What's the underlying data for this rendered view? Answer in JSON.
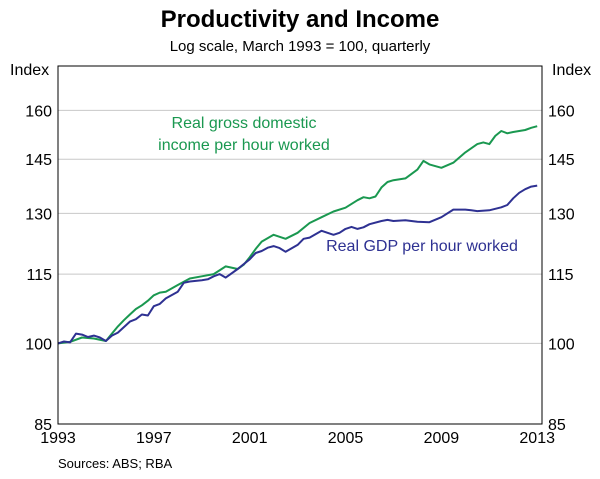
{
  "chart_data": {
    "type": "line",
    "title": "Productivity and Income",
    "subtitle": "Log scale, March 1993 = 100, quarterly",
    "ylabel_left": "Index",
    "ylabel_right": "Index",
    "y_scale": "log",
    "ylim": [
      85,
      175
    ],
    "yticks": [
      85,
      100,
      115,
      130,
      145,
      160
    ],
    "xlim": [
      1993,
      2013.2
    ],
    "xticks": [
      1993,
      1997,
      2001,
      2005,
      2009,
      2013
    ],
    "source": "Sources: ABS; RBA",
    "colors": {
      "green": "#1a9850",
      "blue": "#2e3192",
      "grid": "#c8c8c8"
    },
    "series": [
      {
        "name": "Real gross domestic income per hour worked",
        "label_lines": [
          "Real gross domestic",
          "income per hour worked"
        ],
        "color": "#1a9850",
        "points": [
          [
            1993.0,
            100.0
          ],
          [
            1993.5,
            100.3
          ],
          [
            1994.0,
            101.2
          ],
          [
            1994.5,
            101.0
          ],
          [
            1995.0,
            100.5
          ],
          [
            1995.25,
            102.0
          ],
          [
            1995.5,
            103.5
          ],
          [
            1995.75,
            104.8
          ],
          [
            1996.0,
            106.0
          ],
          [
            1996.25,
            107.2
          ],
          [
            1996.5,
            108.0
          ],
          [
            1996.75,
            109.0
          ],
          [
            1997.0,
            110.2
          ],
          [
            1997.25,
            110.8
          ],
          [
            1997.5,
            111.0
          ],
          [
            1998.0,
            112.5
          ],
          [
            1998.5,
            114.0
          ],
          [
            1999.0,
            114.5
          ],
          [
            1999.5,
            115.0
          ],
          [
            2000.0,
            116.8
          ],
          [
            2000.5,
            116.2
          ],
          [
            2000.75,
            117.2
          ],
          [
            2001.0,
            119.0
          ],
          [
            2001.25,
            121.0
          ],
          [
            2001.5,
            122.8
          ],
          [
            2002.0,
            124.5
          ],
          [
            2002.25,
            124.0
          ],
          [
            2002.5,
            123.5
          ],
          [
            2003.0,
            125.0
          ],
          [
            2003.5,
            127.5
          ],
          [
            2004.0,
            129.0
          ],
          [
            2004.5,
            130.5
          ],
          [
            2005.0,
            131.5
          ],
          [
            2005.5,
            133.5
          ],
          [
            2005.75,
            134.3
          ],
          [
            2006.0,
            134.0
          ],
          [
            2006.25,
            134.5
          ],
          [
            2006.5,
            137.0
          ],
          [
            2006.75,
            138.5
          ],
          [
            2007.0,
            139.0
          ],
          [
            2007.5,
            139.5
          ],
          [
            2008.0,
            142.0
          ],
          [
            2008.25,
            144.5
          ],
          [
            2008.5,
            143.5
          ],
          [
            2009.0,
            142.5
          ],
          [
            2009.5,
            144.0
          ],
          [
            2010.0,
            147.0
          ],
          [
            2010.5,
            149.5
          ],
          [
            2010.75,
            150.0
          ],
          [
            2011.0,
            149.5
          ],
          [
            2011.25,
            152.0
          ],
          [
            2011.5,
            153.5
          ],
          [
            2011.75,
            152.8
          ],
          [
            2012.0,
            153.2
          ],
          [
            2012.25,
            153.5
          ],
          [
            2012.5,
            153.8
          ],
          [
            2012.75,
            154.5
          ],
          [
            2013.0,
            155.0
          ]
        ]
      },
      {
        "name": "Real GDP per hour worked",
        "label_lines": [
          "Real GDP per hour worked"
        ],
        "color": "#2e3192",
        "points": [
          [
            1993.0,
            100.0
          ],
          [
            1993.25,
            100.4
          ],
          [
            1993.5,
            100.2
          ],
          [
            1993.75,
            102.0
          ],
          [
            1994.0,
            101.8
          ],
          [
            1994.25,
            101.3
          ],
          [
            1994.5,
            101.6
          ],
          [
            1994.75,
            101.2
          ],
          [
            1995.0,
            100.5
          ],
          [
            1995.25,
            101.6
          ],
          [
            1995.5,
            102.2
          ],
          [
            1996.0,
            104.5
          ],
          [
            1996.25,
            105.0
          ],
          [
            1996.5,
            106.0
          ],
          [
            1996.75,
            105.8
          ],
          [
            1997.0,
            107.8
          ],
          [
            1997.25,
            108.3
          ],
          [
            1997.5,
            109.5
          ],
          [
            1998.0,
            111.0
          ],
          [
            1998.25,
            113.0
          ],
          [
            1998.5,
            113.3
          ],
          [
            1999.0,
            113.6
          ],
          [
            1999.25,
            113.8
          ],
          [
            1999.5,
            114.5
          ],
          [
            1999.75,
            115.0
          ],
          [
            2000.0,
            114.2
          ],
          [
            2000.5,
            116.2
          ],
          [
            2001.0,
            118.5
          ],
          [
            2001.25,
            120.0
          ],
          [
            2001.5,
            120.5
          ],
          [
            2001.75,
            121.3
          ],
          [
            2002.0,
            121.7
          ],
          [
            2002.25,
            121.2
          ],
          [
            2002.5,
            120.3
          ],
          [
            2003.0,
            122.0
          ],
          [
            2003.25,
            123.5
          ],
          [
            2003.5,
            123.8
          ],
          [
            2004.0,
            125.5
          ],
          [
            2004.5,
            124.5
          ],
          [
            2004.75,
            125.0
          ],
          [
            2005.0,
            126.0
          ],
          [
            2005.25,
            126.5
          ],
          [
            2005.5,
            126.0
          ],
          [
            2005.75,
            126.4
          ],
          [
            2006.0,
            127.2
          ],
          [
            2006.5,
            128.0
          ],
          [
            2006.75,
            128.3
          ],
          [
            2007.0,
            128.0
          ],
          [
            2007.5,
            128.2
          ],
          [
            2008.0,
            127.8
          ],
          [
            2008.5,
            127.7
          ],
          [
            2009.0,
            129.0
          ],
          [
            2009.5,
            131.0
          ],
          [
            2010.0,
            131.0
          ],
          [
            2010.25,
            130.8
          ],
          [
            2010.5,
            130.6
          ],
          [
            2011.0,
            130.8
          ],
          [
            2011.5,
            131.6
          ],
          [
            2011.75,
            132.2
          ],
          [
            2012.0,
            134.0
          ],
          [
            2012.25,
            135.5
          ],
          [
            2012.5,
            136.5
          ],
          [
            2012.75,
            137.2
          ],
          [
            2013.0,
            137.5
          ]
        ]
      }
    ]
  }
}
